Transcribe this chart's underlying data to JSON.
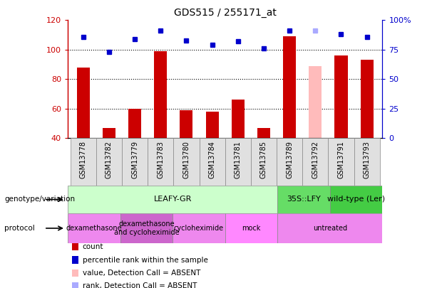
{
  "title": "GDS515 / 255171_at",
  "samples": [
    "GSM13778",
    "GSM13782",
    "GSM13779",
    "GSM13783",
    "GSM13780",
    "GSM13784",
    "GSM13781",
    "GSM13785",
    "GSM13789",
    "GSM13792",
    "GSM13791",
    "GSM13793"
  ],
  "counts": [
    88,
    47,
    60,
    99,
    59,
    58,
    66,
    47,
    109,
    89,
    96,
    93
  ],
  "percentile_ranks": [
    86,
    73,
    84,
    91,
    83,
    79,
    82,
    76,
    91,
    null,
    88,
    86
  ],
  "absent_value": [
    null,
    null,
    null,
    null,
    null,
    null,
    null,
    null,
    null,
    89,
    null,
    null
  ],
  "absent_rank": [
    null,
    null,
    null,
    null,
    null,
    null,
    null,
    null,
    null,
    91,
    null,
    null
  ],
  "ylim_left": [
    40,
    120
  ],
  "ylim_right": [
    0,
    100
  ],
  "yticks_left": [
    40,
    60,
    80,
    100,
    120
  ],
  "yticks_right": [
    0,
    25,
    50,
    75,
    100
  ],
  "yticklabels_right": [
    "0",
    "25",
    "50",
    "75",
    "100%"
  ],
  "bar_color": "#cc0000",
  "absent_bar_color": "#ffbbbb",
  "dot_color": "#0000cc",
  "absent_dot_color": "#aaaaff",
  "genotype_groups": [
    {
      "label": "LEAFY-GR",
      "start": 0,
      "end": 8,
      "color": "#ccffcc"
    },
    {
      "label": "35S::LFY",
      "start": 8,
      "end": 10,
      "color": "#66dd66"
    },
    {
      "label": "wild-type (Ler)",
      "start": 10,
      "end": 12,
      "color": "#44cc44"
    }
  ],
  "protocol_groups": [
    {
      "label": "dexamethasone",
      "start": 0,
      "end": 2,
      "color": "#ee88ee"
    },
    {
      "label": "dexamethasone\nand cycloheximide",
      "start": 2,
      "end": 4,
      "color": "#cc66cc"
    },
    {
      "label": "cycloheximide",
      "start": 4,
      "end": 6,
      "color": "#ee88ee"
    },
    {
      "label": "mock",
      "start": 6,
      "end": 8,
      "color": "#ff88ff"
    },
    {
      "label": "untreated",
      "start": 8,
      "end": 12,
      "color": "#ee88ee"
    }
  ],
  "legend_items": [
    {
      "label": "count",
      "color": "#cc0000"
    },
    {
      "label": "percentile rank within the sample",
      "color": "#0000cc"
    },
    {
      "label": "value, Detection Call = ABSENT",
      "color": "#ffbbbb"
    },
    {
      "label": "rank, Detection Call = ABSENT",
      "color": "#aaaaff"
    }
  ],
  "left_label_color": "#cc0000",
  "right_label_color": "#0000cc",
  "left_tick_color": "#cc0000",
  "right_tick_color": "#0000cc"
}
